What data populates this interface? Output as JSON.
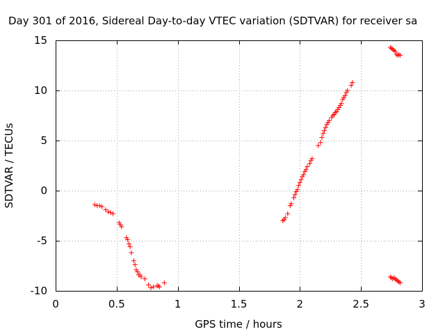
{
  "chart_data": {
    "type": "scatter",
    "title": "Day 301 of 2016, Sidereal Day-to-day VTEC variation (SDTVAR) for receiver sa",
    "xlabel": "GPS time / hours",
    "ylabel": "SDTVAR / TECUs",
    "xlim": [
      0,
      3
    ],
    "ylim": [
      -10,
      15
    ],
    "xticks": [
      0,
      0.5,
      1,
      1.5,
      2,
      2.5,
      3
    ],
    "xtick_labels": [
      "0",
      "0.5",
      "1",
      "1.5",
      "2",
      "2.5",
      "3"
    ],
    "yticks": [
      -10,
      -5,
      0,
      5,
      10,
      15
    ],
    "ytick_labels": [
      "-10",
      "-5",
      "0",
      "5",
      "10",
      "15"
    ],
    "grid": true,
    "marker": "plus",
    "color": "#ff0000",
    "series": [
      {
        "x": [
          0.32,
          0.34,
          0.36,
          0.38,
          0.41,
          0.43,
          0.45,
          0.47,
          0.52,
          0.53,
          0.54,
          0.58,
          0.59,
          0.6,
          0.61,
          0.62,
          0.64,
          0.65,
          0.66,
          0.67,
          0.68,
          0.69,
          0.7,
          0.73,
          0.76,
          0.78,
          0.8,
          0.83,
          0.84,
          0.85,
          0.89
        ],
        "y": [
          -1.4,
          -1.5,
          -1.5,
          -1.6,
          -1.9,
          -2.1,
          -2.2,
          -2.3,
          -3.2,
          -3.4,
          -3.6,
          -4.7,
          -4.9,
          -5.3,
          -5.6,
          -6.2,
          -7.0,
          -7.4,
          -7.9,
          -8.1,
          -8.4,
          -8.4,
          -8.6,
          -8.8,
          -9.4,
          -9.7,
          -9.6,
          -9.5,
          -9.5,
          -9.6,
          -9.2
        ]
      },
      {
        "x": [
          1.86,
          1.87,
          1.88,
          1.9,
          1.92,
          1.93,
          1.95,
          1.96,
          1.97,
          1.98,
          1.99,
          2.0,
          2.01,
          2.02,
          2.03,
          2.04,
          2.05,
          2.06,
          2.08,
          2.09,
          2.1,
          2.15,
          2.17,
          2.18,
          2.19,
          2.2,
          2.21,
          2.22,
          2.23,
          2.24,
          2.26,
          2.27,
          2.28,
          2.29,
          2.3,
          2.31,
          2.32,
          2.33,
          2.34,
          2.35,
          2.36,
          2.37,
          2.38,
          2.39,
          2.42,
          2.43
        ],
        "y": [
          -3.0,
          -2.9,
          -2.7,
          -2.3,
          -1.5,
          -1.3,
          -0.7,
          -0.4,
          -0.1,
          0.1,
          0.5,
          0.8,
          1.1,
          1.4,
          1.6,
          1.9,
          2.1,
          2.4,
          2.7,
          3.0,
          3.2,
          4.5,
          4.8,
          5.3,
          5.7,
          6.0,
          6.3,
          6.6,
          6.8,
          7.0,
          7.3,
          7.5,
          7.6,
          7.8,
          7.9,
          8.1,
          8.3,
          8.5,
          8.7,
          9.1,
          9.3,
          9.5,
          9.8,
          10.0,
          10.5,
          10.8
        ]
      },
      {
        "x": [
          2.74,
          2.75,
          2.76,
          2.77,
          2.78,
          2.79,
          2.8,
          2.81,
          2.82
        ],
        "y": [
          14.3,
          14.2,
          14.1,
          14.0,
          13.9,
          13.6,
          13.5,
          13.6,
          13.5
        ]
      },
      {
        "x": [
          2.74,
          2.75,
          2.76,
          2.77,
          2.78,
          2.79,
          2.8,
          2.81,
          2.82
        ],
        "y": [
          -8.6,
          -8.7,
          -8.8,
          -8.7,
          -8.8,
          -8.9,
          -9.0,
          -9.1,
          -9.2
        ]
      }
    ]
  }
}
